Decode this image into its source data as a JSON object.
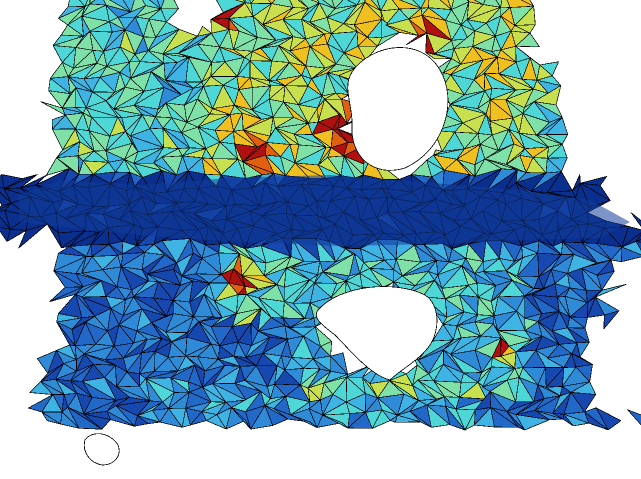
{
  "scene": {
    "background": "#ffffff",
    "edge_color": "#000000",
    "colormap": [
      "#0b2f8e",
      "#1748b0",
      "#2168c8",
      "#2f8ad8",
      "#3fb3e4",
      "#4fd6d6",
      "#7fe0a8",
      "#c8e050",
      "#f0c020",
      "#e06010",
      "#b01010"
    ]
  }
}
